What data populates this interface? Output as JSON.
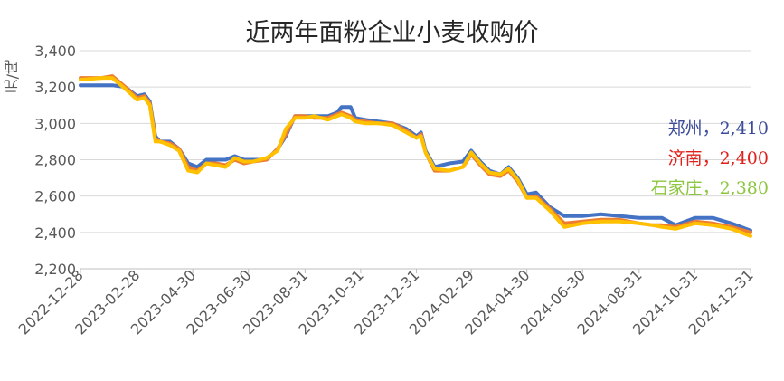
{
  "chart_data": {
    "type": "line",
    "title": "近两年面粉企业小麦收购价",
    "ylabel": "元/吨",
    "ylim": [
      2200,
      3400
    ],
    "yticks": [
      2200,
      2400,
      2600,
      2800,
      3000,
      3200,
      3400
    ],
    "ytick_labels": [
      "2,200",
      "2,400",
      "2,600",
      "2,800",
      "3,000",
      "3,200",
      "3,400"
    ],
    "xlim": [
      "2022-12-28",
      "2024-12-31"
    ],
    "xtick_labels": [
      "2022-12-28",
      "2023-02-28",
      "2023-04-30",
      "2023-06-30",
      "2023-08-31",
      "2023-10-31",
      "2023-12-31",
      "2024-02-29",
      "2024-04-30",
      "2024-06-30",
      "2024-08-31",
      "2024-10-31",
      "2024-12-31"
    ],
    "grid": "horizontal",
    "legend": "none",
    "series": [
      {
        "name": "郑州",
        "color": "#4472C4",
        "label": "郑州，2,410",
        "x": [
          "2022-12-28",
          "2023-01-20",
          "2023-02-01",
          "2023-02-15",
          "2023-02-28",
          "2023-03-08",
          "2023-03-14",
          "2023-03-20",
          "2023-03-25",
          "2023-04-05",
          "2023-04-15",
          "2023-04-25",
          "2023-05-05",
          "2023-05-15",
          "2023-05-25",
          "2023-06-05",
          "2023-06-15",
          "2023-06-25",
          "2023-07-05",
          "2023-07-20",
          "2023-08-01",
          "2023-08-10",
          "2023-08-20",
          "2023-08-31",
          "2023-09-10",
          "2023-09-25",
          "2023-10-05",
          "2023-10-10",
          "2023-10-20",
          "2023-10-25",
          "2023-11-05",
          "2023-11-20",
          "2023-12-05",
          "2023-12-20",
          "2023-12-31",
          "2024-01-05",
          "2024-01-10",
          "2024-01-20",
          "2024-02-05",
          "2024-02-20",
          "2024-02-29",
          "2024-03-10",
          "2024-03-20",
          "2024-04-01",
          "2024-04-10",
          "2024-04-20",
          "2024-04-30",
          "2024-05-10",
          "2024-05-25",
          "2024-06-10",
          "2024-06-30",
          "2024-07-20",
          "2024-08-10",
          "2024-08-31",
          "2024-09-15",
          "2024-09-25",
          "2024-10-10",
          "2024-10-31",
          "2024-11-20",
          "2024-12-10",
          "2024-12-31"
        ],
        "values": [
          3210,
          3210,
          3210,
          3200,
          3150,
          3160,
          3120,
          2930,
          2900,
          2900,
          2860,
          2780,
          2760,
          2800,
          2800,
          2800,
          2820,
          2800,
          2800,
          2800,
          2860,
          2930,
          3040,
          3040,
          3040,
          3040,
          3060,
          3090,
          3090,
          3030,
          3020,
          3010,
          3000,
          2970,
          2930,
          2950,
          2850,
          2760,
          2780,
          2790,
          2850,
          2790,
          2740,
          2720,
          2760,
          2700,
          2610,
          2620,
          2540,
          2490,
          2490,
          2500,
          2490,
          2480,
          2480,
          2480,
          2440,
          2480,
          2480,
          2450,
          2410
        ]
      },
      {
        "name": "济南",
        "color": "#ED7D31",
        "label": "济南，2,400",
        "x": [
          "2022-12-28",
          "2023-01-20",
          "2023-02-01",
          "2023-02-15",
          "2023-02-28",
          "2023-03-08",
          "2023-03-14",
          "2023-03-20",
          "2023-03-25",
          "2023-04-05",
          "2023-04-15",
          "2023-04-25",
          "2023-05-05",
          "2023-05-15",
          "2023-05-25",
          "2023-06-05",
          "2023-06-15",
          "2023-06-25",
          "2023-07-05",
          "2023-07-20",
          "2023-08-01",
          "2023-08-10",
          "2023-08-20",
          "2023-08-31",
          "2023-09-10",
          "2023-09-25",
          "2023-10-05",
          "2023-10-10",
          "2023-10-20",
          "2023-10-25",
          "2023-11-05",
          "2023-11-20",
          "2023-12-05",
          "2023-12-20",
          "2023-12-31",
          "2024-01-05",
          "2024-01-10",
          "2024-01-20",
          "2024-02-05",
          "2024-02-20",
          "2024-02-29",
          "2024-03-10",
          "2024-03-20",
          "2024-04-01",
          "2024-04-10",
          "2024-04-20",
          "2024-04-30",
          "2024-05-10",
          "2024-05-25",
          "2024-06-10",
          "2024-06-30",
          "2024-07-20",
          "2024-08-10",
          "2024-08-31",
          "2024-09-15",
          "2024-09-25",
          "2024-10-10",
          "2024-10-31",
          "2024-11-20",
          "2024-12-10",
          "2024-12-31"
        ],
        "values": [
          3250,
          3250,
          3260,
          3200,
          3140,
          3150,
          3110,
          2910,
          2900,
          2890,
          2860,
          2760,
          2740,
          2780,
          2780,
          2770,
          2800,
          2780,
          2790,
          2800,
          2860,
          2940,
          3040,
          3040,
          3030,
          3030,
          3050,
          3060,
          3040,
          3020,
          3010,
          3000,
          3000,
          2960,
          2920,
          2940,
          2840,
          2740,
          2740,
          2760,
          2830,
          2770,
          2720,
          2710,
          2740,
          2680,
          2590,
          2600,
          2530,
          2450,
          2460,
          2470,
          2470,
          2450,
          2440,
          2440,
          2430,
          2460,
          2450,
          2430,
          2400
        ]
      },
      {
        "name": "石家庄",
        "color": "#FFC000",
        "label": "石家庄，2,380",
        "x": [
          "2022-12-28",
          "2023-01-20",
          "2023-02-01",
          "2023-02-15",
          "2023-02-28",
          "2023-03-08",
          "2023-03-14",
          "2023-03-20",
          "2023-03-25",
          "2023-04-05",
          "2023-04-15",
          "2023-04-25",
          "2023-05-05",
          "2023-05-15",
          "2023-05-25",
          "2023-06-05",
          "2023-06-15",
          "2023-06-25",
          "2023-07-05",
          "2023-07-20",
          "2023-08-01",
          "2023-08-10",
          "2023-08-20",
          "2023-08-31",
          "2023-09-10",
          "2023-09-25",
          "2023-10-05",
          "2023-10-10",
          "2023-10-20",
          "2023-10-25",
          "2023-11-05",
          "2023-11-20",
          "2023-12-05",
          "2023-12-20",
          "2023-12-31",
          "2024-01-05",
          "2024-01-10",
          "2024-01-20",
          "2024-02-05",
          "2024-02-20",
          "2024-02-29",
          "2024-03-10",
          "2024-03-20",
          "2024-04-01",
          "2024-04-10",
          "2024-04-20",
          "2024-04-30",
          "2024-05-10",
          "2024-05-25",
          "2024-06-10",
          "2024-06-30",
          "2024-07-20",
          "2024-08-10",
          "2024-08-31",
          "2024-09-15",
          "2024-09-25",
          "2024-10-10",
          "2024-10-31",
          "2024-11-20",
          "2024-12-10",
          "2024-12-31"
        ],
        "values": [
          3240,
          3250,
          3250,
          3190,
          3130,
          3140,
          3100,
          2900,
          2900,
          2880,
          2850,
          2740,
          2730,
          2780,
          2770,
          2760,
          2810,
          2790,
          2790,
          2810,
          2850,
          2970,
          3030,
          3030,
          3040,
          3020,
          3040,
          3050,
          3030,
          3010,
          3000,
          3000,
          2990,
          2950,
          2920,
          2930,
          2840,
          2750,
          2740,
          2760,
          2840,
          2780,
          2730,
          2720,
          2750,
          2690,
          2590,
          2590,
          2520,
          2430,
          2450,
          2460,
          2460,
          2450,
          2440,
          2430,
          2420,
          2450,
          2440,
          2420,
          2380
        ]
      }
    ]
  }
}
